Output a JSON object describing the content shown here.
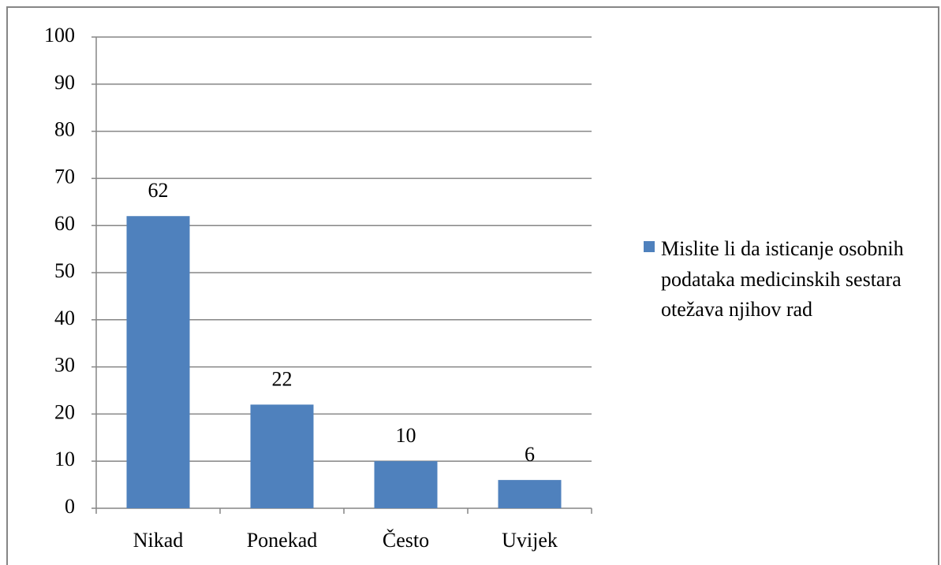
{
  "chart_data": {
    "type": "bar",
    "categories": [
      "Nikad",
      "Ponekad",
      "Često",
      "Uvijek"
    ],
    "series": [
      {
        "name": "Mislite li da  isticanje osobnih podataka medicinskih sestara otežava njihov rad",
        "color": "#4f81bd",
        "values": [
          62,
          22,
          10,
          6
        ]
      }
    ],
    "ylim": [
      0,
      100
    ],
    "yticks": [
      0,
      10,
      20,
      30,
      40,
      50,
      60,
      70,
      80,
      90,
      100
    ],
    "grid": true,
    "legend": "right"
  }
}
